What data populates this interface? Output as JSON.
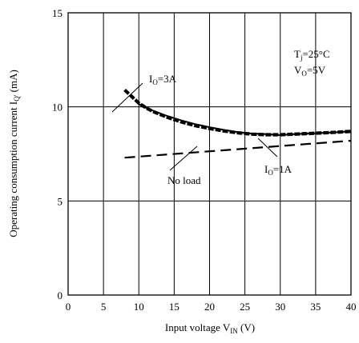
{
  "chart_data": {
    "type": "line",
    "xlabel": "Input voltage V",
    "xlabel_sub": "IN",
    "xlabel_unit": " (V)",
    "ylabel": "Operating consumption current I",
    "ylabel_sub": "Q'",
    "ylabel_unit": " (mA)",
    "xlim": [
      0,
      40
    ],
    "ylim": [
      0,
      15
    ],
    "x_ticks": [
      "0",
      "5",
      "10",
      "15",
      "20",
      "25",
      "30",
      "35",
      "40"
    ],
    "y_ticks": [
      "0",
      "5",
      "10",
      "15"
    ],
    "grid": true,
    "series": [
      {
        "name": "I_O=3A",
        "style": "thick-dashed",
        "x": [
          8,
          9,
          10,
          11,
          12,
          14,
          16,
          18,
          20,
          22,
          24,
          26,
          28,
          30,
          32,
          35,
          38,
          40
        ],
        "y": [
          10.9,
          10.55,
          10.2,
          9.95,
          9.75,
          9.45,
          9.2,
          9.0,
          8.85,
          8.72,
          8.62,
          8.55,
          8.52,
          8.52,
          8.55,
          8.6,
          8.65,
          8.7
        ]
      },
      {
        "name": "I_O=1A",
        "style": "solid",
        "x": [
          10,
          11,
          12,
          14,
          16,
          18,
          20,
          22,
          24,
          26,
          28,
          30,
          32,
          35,
          38,
          40
        ],
        "y": [
          10.15,
          9.95,
          9.8,
          9.52,
          9.28,
          9.08,
          8.92,
          8.78,
          8.66,
          8.58,
          8.55,
          8.5,
          8.55,
          8.6,
          8.65,
          8.7
        ]
      },
      {
        "name": "No load",
        "style": "dashed",
        "x": [
          8,
          40
        ],
        "y": [
          7.3,
          8.2
        ]
      }
    ],
    "annotations": {
      "io3a": {
        "main": "I",
        "sub": "O",
        "rest": "=3A"
      },
      "io1a": {
        "main": "I",
        "sub": "O",
        "rest": "=1A"
      },
      "noload": "No load",
      "tj": {
        "main": "T",
        "sub": "j",
        "rest": "=25°C"
      },
      "vo": {
        "main": "V",
        "sub": "O",
        "rest": "=5V"
      }
    }
  }
}
